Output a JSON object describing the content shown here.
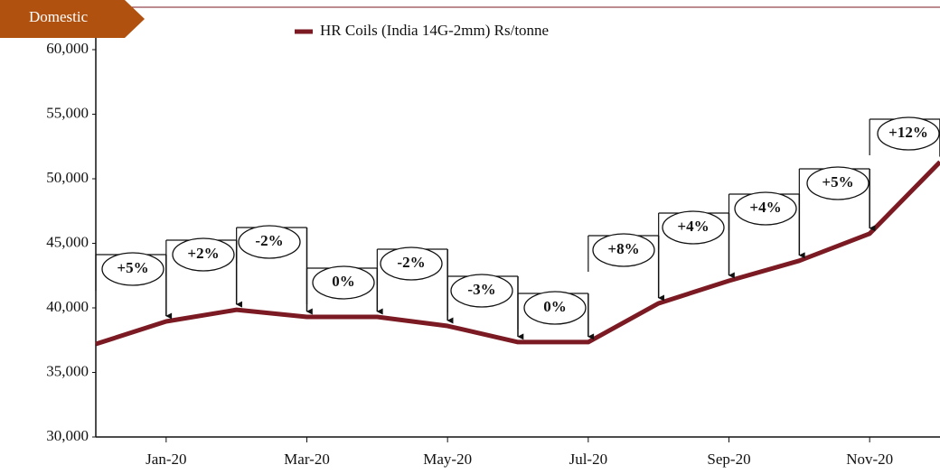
{
  "chart_data": {
    "type": "line",
    "badge": "Domestic",
    "categories": [
      null,
      "Jan-20",
      null,
      "Mar-20",
      null,
      "May-20",
      null,
      "Jul-20",
      null,
      "Sep-20",
      null,
      "Nov-20",
      null
    ],
    "series": [
      {
        "name": "HR Coils (India 14G-2mm) Rs/tonne",
        "color": "#7b1a22",
        "values": [
          37200,
          38950,
          39850,
          39300,
          39300,
          38600,
          37350,
          37350,
          40350,
          42100,
          43650,
          45750,
          51300
        ]
      }
    ],
    "annotations": [
      null,
      "+5%",
      "+2%",
      "-2%",
      "0%",
      "-2%",
      "-3%",
      "0%",
      "+8%",
      "+4%",
      "+4%",
      "+5%",
      "+12%"
    ],
    "ylim": [
      30000,
      60000
    ],
    "yticks": [
      {
        "value": 30000,
        "label": "30,000"
      },
      {
        "value": 35000,
        "label": "35,000"
      },
      {
        "value": 40000,
        "label": "40,000"
      },
      {
        "value": 45000,
        "label": "45,000"
      },
      {
        "value": 50000,
        "label": "50,000"
      },
      {
        "value": 55000,
        "label": "55,000"
      },
      {
        "value": 60000,
        "label": "60,000"
      }
    ],
    "legend": "top"
  }
}
